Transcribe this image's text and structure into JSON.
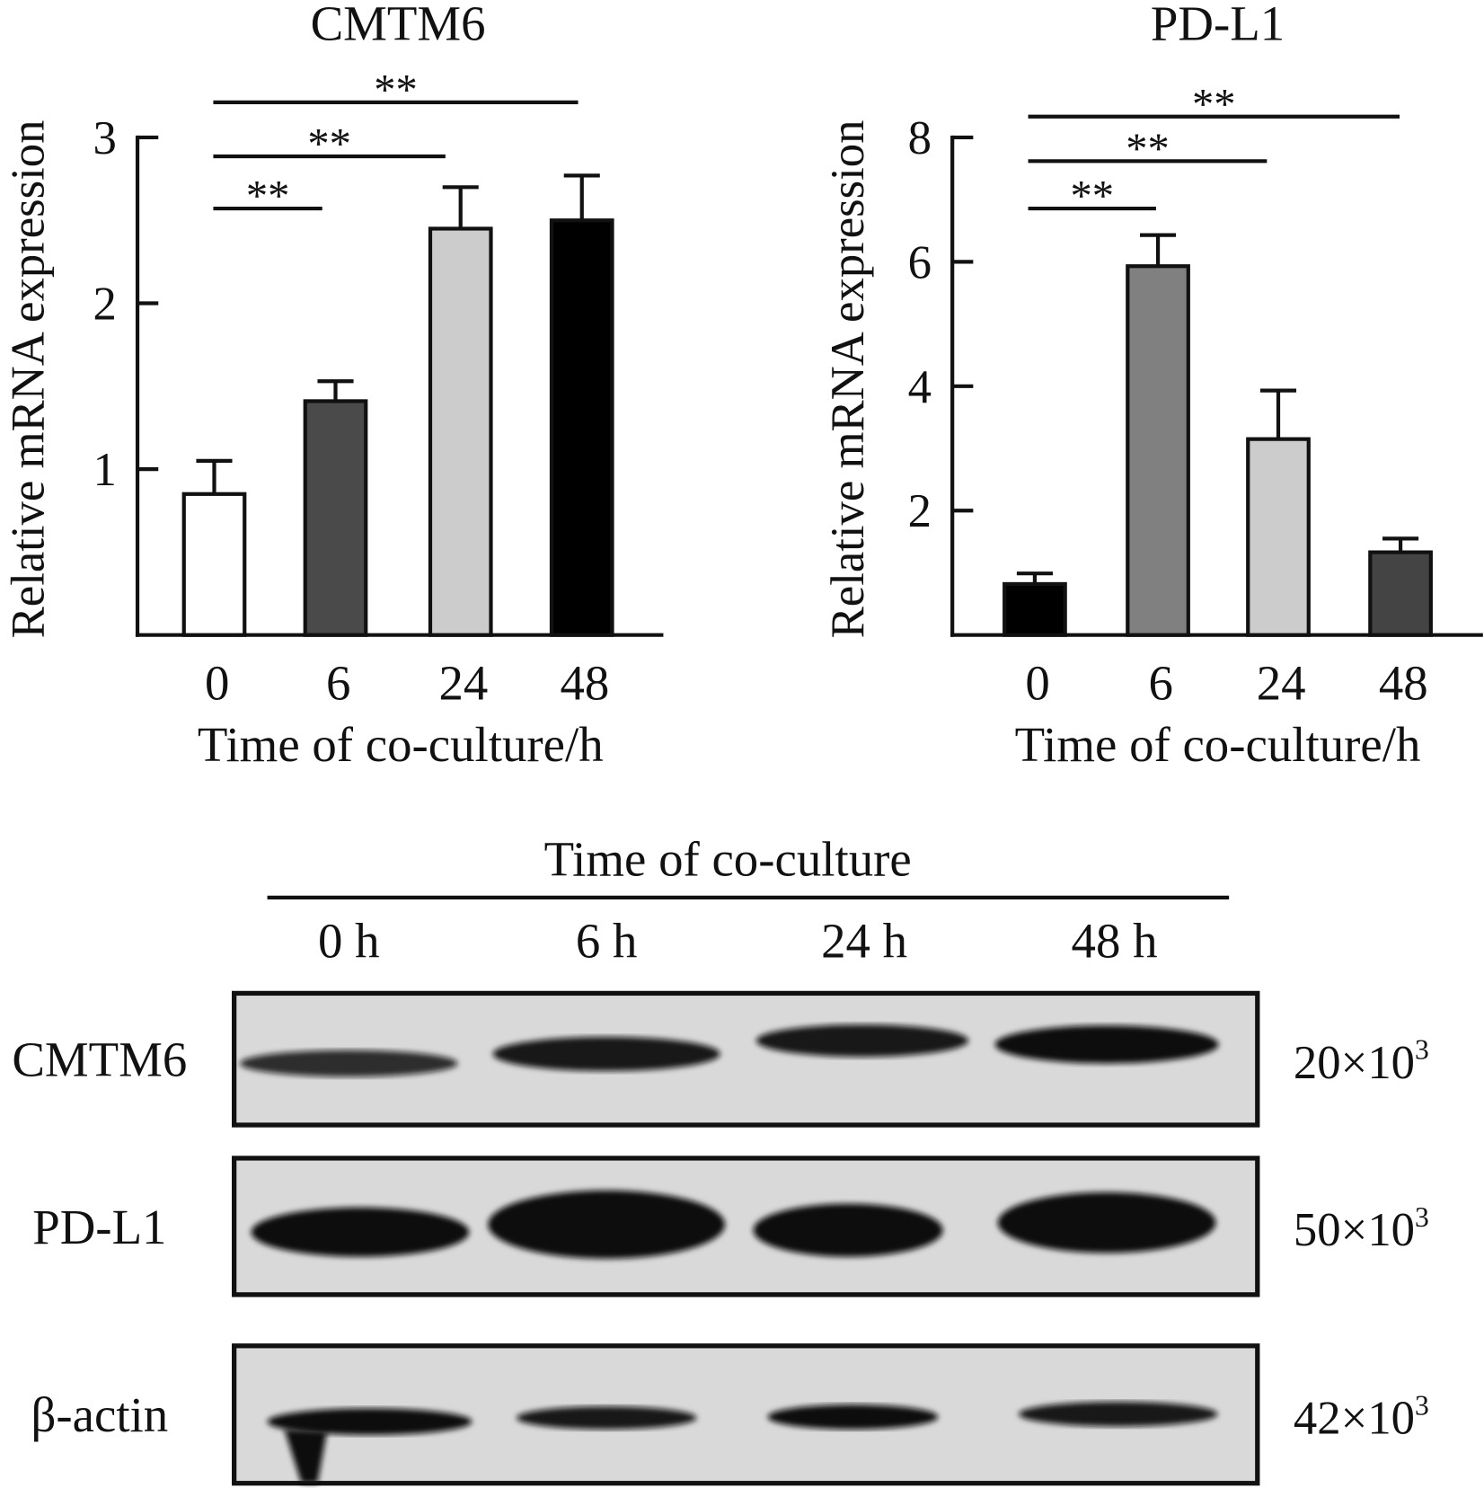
{
  "chart_data": [
    {
      "type": "bar",
      "title": "CMTM6",
      "xlabel": "Time of co-culture/h",
      "ylabel": "Relative mRNA expression",
      "categories": [
        "0",
        "6",
        "24",
        "48"
      ],
      "values": [
        0.85,
        1.41,
        2.45,
        2.5
      ],
      "error": [
        0.2,
        0.12,
        0.25,
        0.27
      ],
      "colors": [
        "#ffffff",
        "#4a4a4a",
        "#cccccc",
        "#000000"
      ],
      "ylim": [
        0,
        3
      ],
      "yticks": [
        "1",
        "2",
        "3"
      ],
      "significance": [
        {
          "from": "0",
          "to": "6",
          "label": "**"
        },
        {
          "from": "0",
          "to": "24",
          "label": "**"
        },
        {
          "from": "0",
          "to": "48",
          "label": "**"
        }
      ]
    },
    {
      "type": "bar",
      "title": "PD-L1",
      "xlabel": "Time of co-culture/h",
      "ylabel": "Relative mRNA expression",
      "categories": [
        "0",
        "6",
        "24",
        "48"
      ],
      "values": [
        0.82,
        5.93,
        3.15,
        1.33
      ],
      "error": [
        0.17,
        0.5,
        0.78,
        0.22
      ],
      "colors": [
        "#000000",
        "#808080",
        "#cccccc",
        "#444444"
      ],
      "ylim": [
        0,
        8
      ],
      "yticks": [
        "2",
        "4",
        "6",
        "8"
      ],
      "significance": [
        {
          "from": "0",
          "to": "6",
          "label": "**"
        },
        {
          "from": "0",
          "to": "24",
          "label": "**"
        },
        {
          "from": "0",
          "to": "48",
          "label": "**"
        }
      ]
    }
  ],
  "blot": {
    "header": "Time of co-culture",
    "lanes": [
      "0 h",
      "6 h",
      "24 h",
      "48 h"
    ],
    "rows": [
      {
        "label": "CMTM6",
        "mw": "20×10",
        "mw_exp": "3"
      },
      {
        "label": "PD-L1",
        "mw": "50×10",
        "mw_exp": "3"
      },
      {
        "label": "β-actin",
        "mw": "42×10",
        "mw_exp": "3"
      }
    ]
  }
}
